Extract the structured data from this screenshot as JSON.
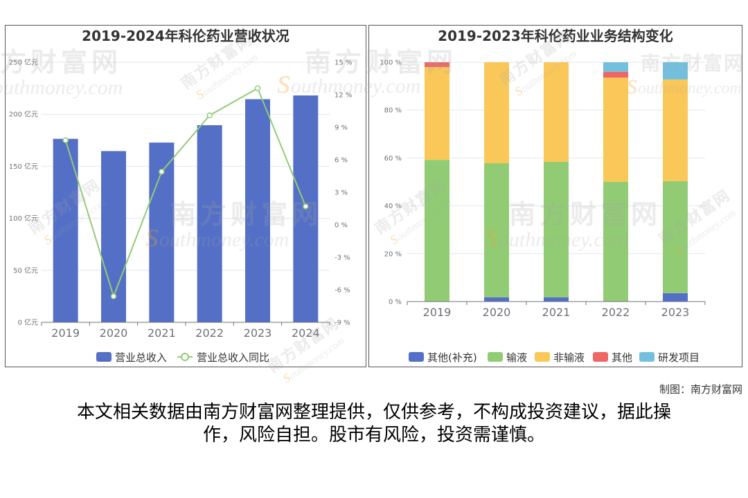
{
  "chart_data": [
    {
      "type": "bar",
      "title": "2019-2024年科伦药业营收状况",
      "categories": [
        "2019",
        "2020",
        "2021",
        "2022",
        "2023",
        "2024"
      ],
      "series": [
        {
          "name": "营业总收入",
          "type": "bar",
          "axis": "left",
          "color": "#5470c6",
          "values": [
            176.4,
            164.6,
            172.8,
            189.5,
            214.5,
            218.1
          ]
        },
        {
          "name": "营业总收入同比",
          "type": "line",
          "axis": "right",
          "color": "#91cc75",
          "values": [
            7.8,
            -6.6,
            4.9,
            10.1,
            12.6,
            1.7
          ]
        }
      ],
      "y_left": {
        "unit": "亿元",
        "range": [
          0,
          250
        ],
        "ticks": [
          0,
          50,
          100,
          150,
          200,
          250
        ],
        "tick_labels": [
          "0 亿元",
          "50 亿元",
          "100 亿元",
          "150 亿元",
          "200 亿元",
          "250 亿元"
        ]
      },
      "y_right": {
        "unit": "%",
        "range": [
          -9,
          15
        ],
        "ticks": [
          -9,
          -6,
          -3,
          0,
          3,
          6,
          9,
          12,
          15
        ],
        "tick_labels": [
          "-9 %",
          "-6 %",
          "-3 %",
          "0 %",
          "3 %",
          "6 %",
          "9 %",
          "12 %",
          "15 %"
        ]
      },
      "grid": true,
      "legend": "bottom-center"
    },
    {
      "type": "bar",
      "stacked": true,
      "title": "2019-2023年科伦药业业务结构变化",
      "categories": [
        "2019",
        "2020",
        "2021",
        "2022",
        "2023"
      ],
      "series": [
        {
          "name": "其他(补充)",
          "color": "#5470c6",
          "values": [
            0,
            1.8,
            1.8,
            0,
            3.5
          ]
        },
        {
          "name": "输液",
          "color": "#91cc75",
          "values": [
            59.2,
            56.0,
            56.6,
            50.0,
            46.8
          ]
        },
        {
          "name": "非输液",
          "color": "#fac858",
          "values": [
            38.8,
            42.2,
            41.6,
            43.6,
            42.5
          ]
        },
        {
          "name": "其他",
          "color": "#ee6666",
          "values": [
            2.0,
            0,
            0,
            2.4,
            0
          ]
        },
        {
          "name": "研发项目",
          "color": "#73c0de",
          "values": [
            0,
            0,
            0,
            4.0,
            7.2
          ]
        }
      ],
      "y": {
        "unit": "%",
        "range": [
          0,
          100
        ],
        "ticks": [
          0,
          20,
          40,
          60,
          80,
          100
        ],
        "tick_labels": [
          "0 %",
          "20 %",
          "40 %",
          "60 %",
          "80 %",
          "100 %"
        ]
      },
      "grid": true,
      "legend": "bottom-center"
    }
  ],
  "footer": {
    "credit": "制图：南方财富网",
    "disclaimer": "本文相关数据由南方财富网整理提供，仅供参考，不构成投资建议，据此操作，风险自担。股市有风险，投资需谨慎。"
  },
  "watermark": {
    "brand": "南方财富网",
    "site": "southmoney.com"
  },
  "colors": {
    "axis": "#6e7079",
    "gridline": "#e0e6f1",
    "text": "#333333",
    "line_marker_fill": "#ffffff"
  }
}
